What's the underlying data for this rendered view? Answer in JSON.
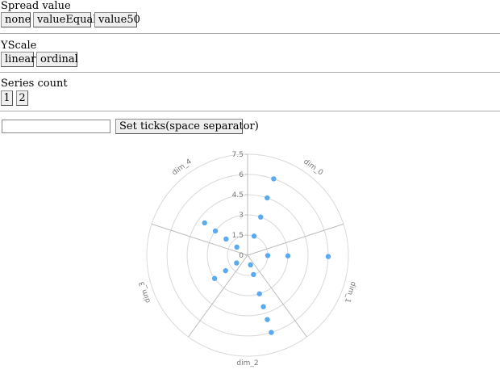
{
  "controls": {
    "spread": {
      "label": "Spread value",
      "options": [
        "none",
        "valueEqual",
        "value50"
      ]
    },
    "yscale": {
      "label": "YScale",
      "options": [
        "linear",
        "ordinal"
      ]
    },
    "series_count": {
      "label": "Series count",
      "options": [
        "1",
        "2"
      ]
    },
    "ticks": {
      "input_value": "",
      "button_label": "Set ticks(space separator)"
    }
  },
  "chart_data": {
    "type": "scatter",
    "coordinate_system": "polar",
    "dimensions": [
      "dim_0",
      "dim_1",
      "dim_2",
      "dim_3",
      "dim_4"
    ],
    "radial_ticks": [
      "0",
      "1.5",
      "3",
      "4.5",
      "6",
      "7.5"
    ],
    "radial_range": [
      0,
      7.5
    ],
    "grid": true,
    "series": [
      {
        "dimension": "dim_0",
        "values": [
          1.5,
          3.0,
          4.5,
          6.0
        ]
      },
      {
        "dimension": "dim_1",
        "values": [
          1.5,
          3.0,
          6.0
        ]
      },
      {
        "dimension": "dim_2",
        "values": [
          0.75,
          1.5,
          3.0,
          4.0,
          5.0,
          6.0
        ]
      },
      {
        "dimension": "dim_3",
        "values": [
          1.0,
          2.0,
          3.0
        ]
      },
      {
        "dimension": "dim_4",
        "values": [
          1.0,
          2.0,
          3.0,
          4.0
        ]
      }
    ],
    "point_color": "#5aaaf0",
    "grid_color": "#d9d9d9",
    "axis_color": "#bbbbbb"
  }
}
